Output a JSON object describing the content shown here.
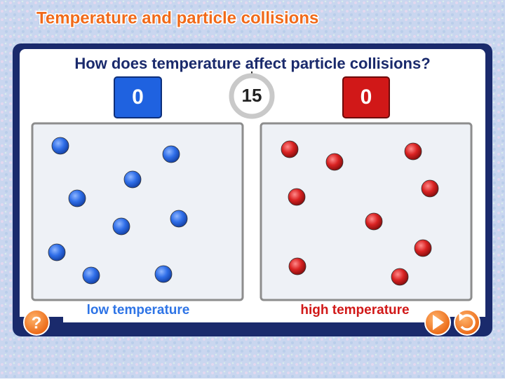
{
  "header": {
    "title": "Temperature and particle collisions"
  },
  "activity": {
    "question": "How does temperature affect particle collisions?",
    "low_counter": 0,
    "high_counter": 0,
    "timer": 15,
    "low_label": "low temperature",
    "high_label": "high temperature",
    "help_button": "?"
  }
}
